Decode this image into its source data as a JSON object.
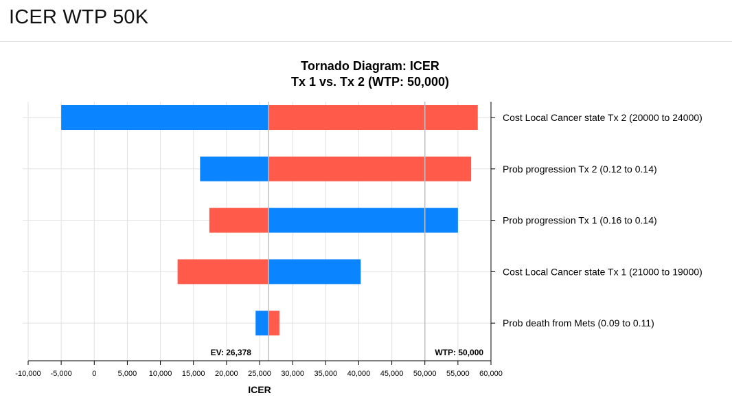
{
  "page": {
    "title": "ICER WTP 50K"
  },
  "chart_data": {
    "type": "bar",
    "subtype": "tornado",
    "title": "Tornado Diagram: ICER",
    "subtitle": "Tx 1 vs. Tx 2 (WTP: 50,000)",
    "xlabel": "ICER",
    "ylabel": "",
    "xlim": [
      -10000,
      60000
    ],
    "x_ticks": [
      -10000,
      -5000,
      0,
      5000,
      10000,
      15000,
      20000,
      25000,
      30000,
      35000,
      40000,
      45000,
      50000,
      55000,
      60000
    ],
    "x_tick_labels": [
      "-10,000",
      "-5,000",
      "0",
      "5,000",
      "10,000",
      "15,000",
      "20,000",
      "25,000",
      "30,000",
      "35,000",
      "40,000",
      "45,000",
      "50,000",
      "55,000",
      "60,000"
    ],
    "grid": true,
    "colors": {
      "blue": "#0a84ff",
      "red": "#ff5a4a",
      "reference_line": "#c0c0c0",
      "grid": "#e2e2e2"
    },
    "expected_value": 26378,
    "ev_label": "EV: 26,378",
    "wtp": 50000,
    "wtp_label": "WTP: 50,000",
    "rows": [
      {
        "label": "Cost Local Cancer state Tx 2 (20000 to 24000)",
        "left_value": -5000,
        "left_color": "blue",
        "right_value": 58000,
        "right_color": "red"
      },
      {
        "label": "Prob progression Tx 2 (0.12 to 0.14)",
        "left_value": 16000,
        "left_color": "blue",
        "right_value": 57000,
        "right_color": "red"
      },
      {
        "label": "Prob progression Tx 1 (0.16 to 0.14)",
        "left_value": 17400,
        "left_color": "red",
        "right_value": 55000,
        "right_color": "blue"
      },
      {
        "label": "Cost Local Cancer state Tx 1 (21000 to 19000)",
        "left_value": 12600,
        "left_color": "red",
        "right_value": 40300,
        "right_color": "blue"
      },
      {
        "label": "Prob death from Mets (0.09 to 0.11)",
        "left_value": 24400,
        "left_color": "blue",
        "right_value": 28000,
        "right_color": "red"
      }
    ]
  }
}
